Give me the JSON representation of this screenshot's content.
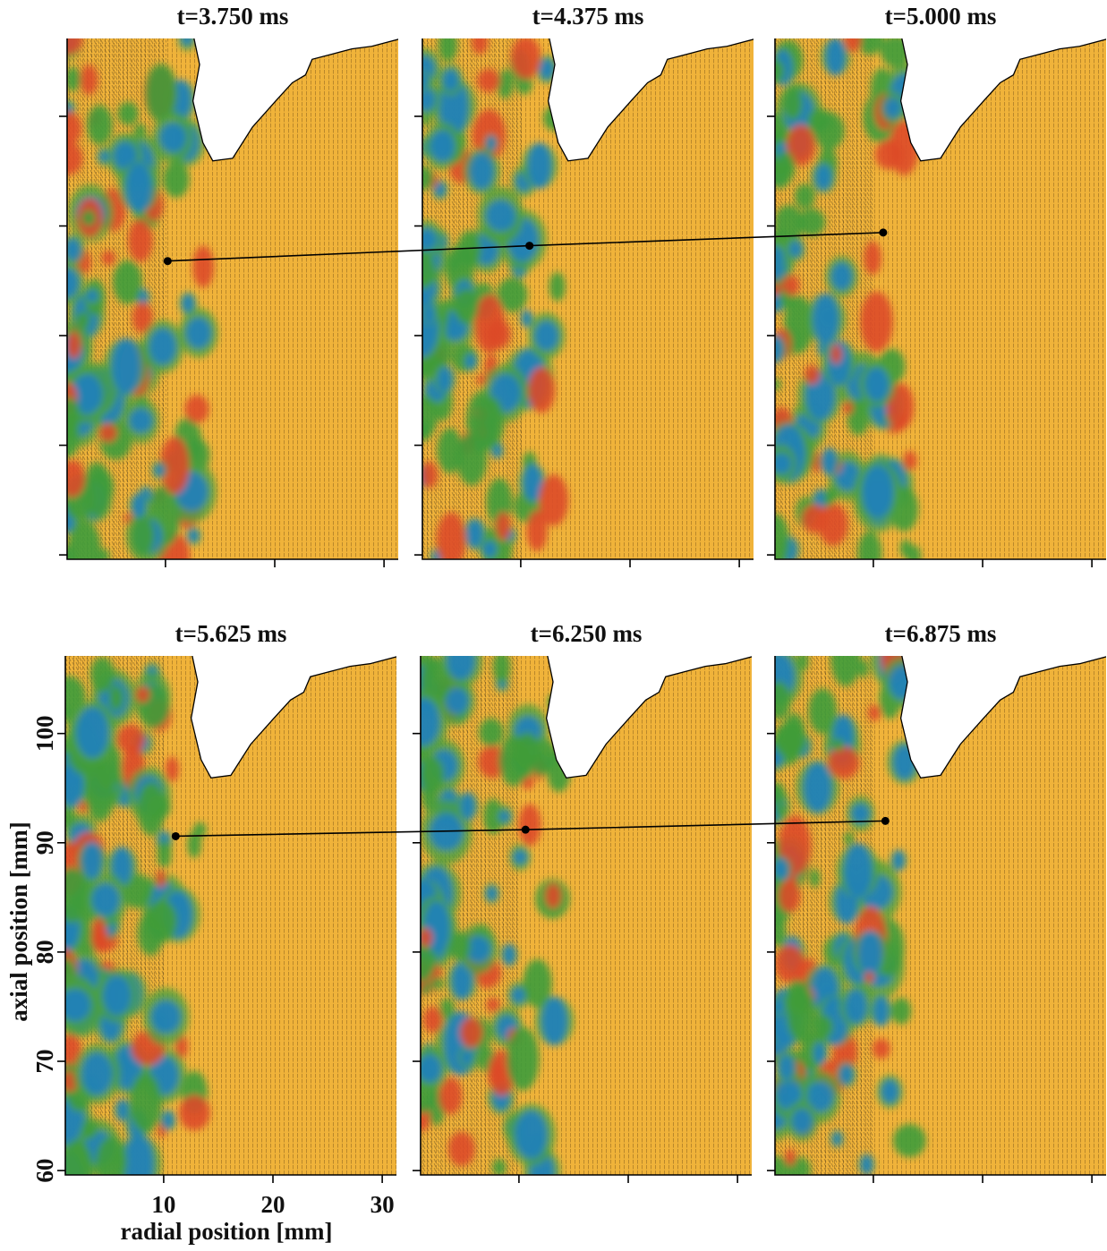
{
  "chart_data": [
    {
      "type": "scatter",
      "title": "t=3.750 ms",
      "x": [
        10.2
      ],
      "y": [
        86.8
      ],
      "xlim": [
        1,
        31.3
      ],
      "ylim": [
        59.6,
        107.1
      ],
      "xticks": [
        10,
        20,
        30
      ],
      "yticks": [
        60,
        70,
        80,
        90,
        100
      ],
      "tick_labels": false,
      "color": "#000000"
    },
    {
      "type": "scatter",
      "title": "t=4.375 ms",
      "x": [
        10.8
      ],
      "y": [
        88.2
      ],
      "xlim": [
        1,
        31.3
      ],
      "ylim": [
        59.6,
        107.1
      ],
      "xticks": [
        10,
        20,
        30
      ],
      "yticks": [
        60,
        70,
        80,
        90,
        100
      ],
      "tick_labels": false,
      "color": "#000000"
    },
    {
      "type": "scatter",
      "title": "t=5.000 ms",
      "x": [
        10.9
      ],
      "y": [
        89.4
      ],
      "xlim": [
        1,
        31.3
      ],
      "ylim": [
        59.6,
        107.1
      ],
      "xticks": [
        10,
        20,
        30
      ],
      "yticks": [
        60,
        70,
        80,
        90,
        100
      ],
      "tick_labels": false,
      "color": "#000000"
    },
    {
      "type": "scatter",
      "title": "t=5.625 ms",
      "x": [
        11.1
      ],
      "y": [
        90.6
      ],
      "xlim": [
        1,
        31.3
      ],
      "ylim": [
        59.6,
        107.1
      ],
      "xticks": [
        10,
        20,
        30
      ],
      "yticks": [
        60,
        70,
        80,
        90,
        100
      ],
      "tick_labels": true,
      "xlabel": "radial position [mm]",
      "ylabel": "axial position [mm]",
      "color": "#000000"
    },
    {
      "type": "scatter",
      "title": "t=6.250 ms",
      "x": [
        10.6
      ],
      "y": [
        91.2
      ],
      "xlim": [
        1,
        31.3
      ],
      "ylim": [
        59.6,
        107.1
      ],
      "xticks": [
        10,
        20,
        30
      ],
      "yticks": [
        60,
        70,
        80,
        90,
        100
      ],
      "tick_labels": false,
      "color": "#000000"
    },
    {
      "type": "scatter",
      "title": "t=6.875 ms",
      "x": [
        11.1
      ],
      "y": [
        92.0
      ],
      "xlim": [
        1,
        31.3
      ],
      "ylim": [
        59.6,
        107.1
      ],
      "xticks": [
        10,
        20,
        30
      ],
      "yticks": [
        60,
        70,
        80,
        90,
        100
      ],
      "tick_labels": false,
      "color": "#000000"
    }
  ]
}
